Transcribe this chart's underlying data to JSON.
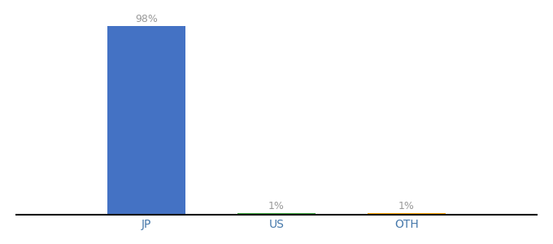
{
  "categories": [
    "JP",
    "US",
    "OTH"
  ],
  "values": [
    98,
    1,
    1
  ],
  "bar_colors": [
    "#4472C4",
    "#3DAA3D",
    "#FFA500"
  ],
  "labels": [
    "98%",
    "1%",
    "1%"
  ],
  "ylim": [
    0,
    105
  ],
  "background_color": "#ffffff",
  "label_color": "#999999",
  "bar_width": 0.6,
  "x_positions": [
    1,
    2,
    3
  ],
  "xlim": [
    0,
    4
  ]
}
